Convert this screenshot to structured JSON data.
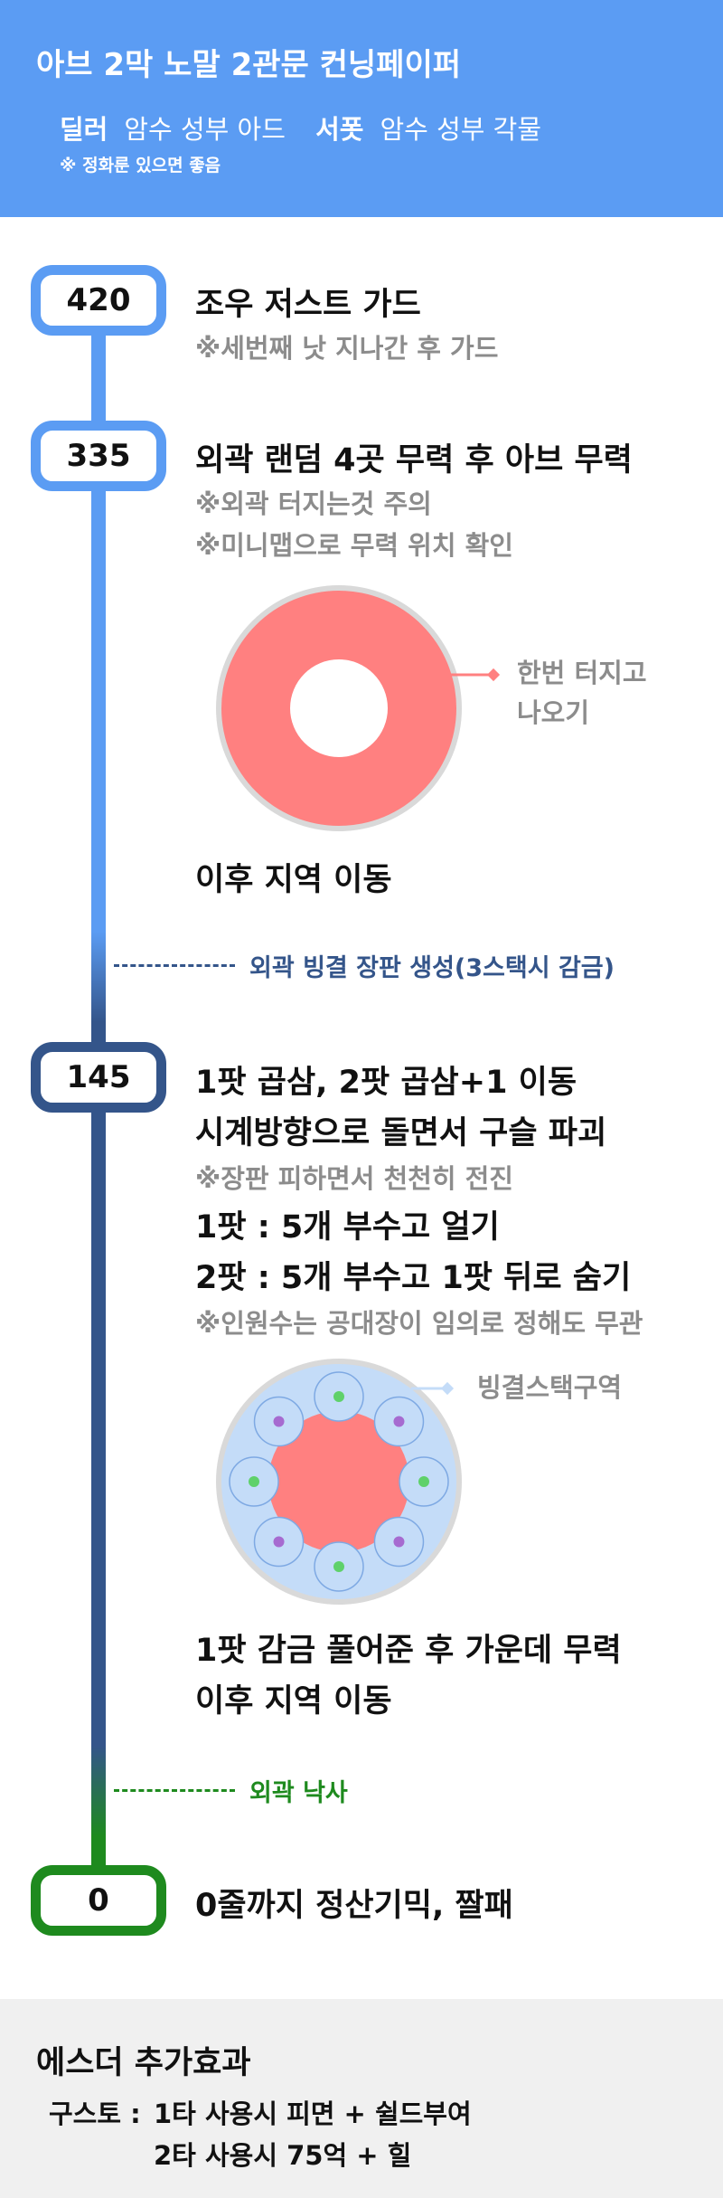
{
  "header": {
    "title": "아브 2막 노말 2관문 컨닝페이퍼",
    "roles": [
      {
        "label": "딜러",
        "value": "암수 성부 아드"
      },
      {
        "label": "서폿",
        "value": "암수 성부 각물"
      }
    ],
    "note": "※ 정화룬 있으면 좋음"
  },
  "timeline": {
    "hp420": {
      "hp": "420",
      "main": "조우 저스트 가드",
      "notes": [
        "※세번째 낫 지나간 후 가드"
      ]
    },
    "hp335": {
      "hp": "335",
      "main": "외곽 랜덤 4곳 무력 후 아브 무력",
      "notes": [
        "※외곽 터지는것 주의",
        "※미니맵으로 무력 위치 확인"
      ],
      "callout": [
        "한번 터지고",
        "나오기"
      ],
      "after": "이후 지역 이동"
    },
    "phase1": "외곽 빙결 장판 생성(3스택시 감금)",
    "hp145": {
      "hp": "145",
      "lines": [
        {
          "text": "1팟 곱삼, 2팟 곱삼+1 이동",
          "kind": "main"
        },
        {
          "text": "시계방향으로 돌면서 구슬 파괴",
          "kind": "main"
        },
        {
          "text": "※장판 피하면서 천천히 전진",
          "kind": "note"
        },
        {
          "text": "1팟 : 5개 부수고 얼기",
          "kind": "main"
        },
        {
          "text": "2팟 : 5개 부수고 1팟 뒤로 숨기",
          "kind": "main"
        },
        {
          "text": "※인원수는 공대장이 임의로 정해도 무관",
          "kind": "note"
        }
      ],
      "callout": "빙결스택구역",
      "after": [
        "1팟 감금 풀어준 후 가운데 무력",
        "이후 지역 이동"
      ]
    },
    "phase2": "외곽 낙사",
    "hp0": {
      "hp": "0",
      "main": "0줄까지 정산기믹, 짤패"
    }
  },
  "footer": {
    "title": "에스더 추가효과",
    "label": "구스토 :",
    "line1": "1타 사용시 피면 + 쉴드부여",
    "line2": "2타 사용시 75억 + 힐"
  },
  "colors": {
    "header_bg": "#5b9cf3",
    "phase_blue": "#5b9cf3",
    "phase_navy": "#34558a",
    "phase_green": "#1e8a1e",
    "danger_zone": "#ff8080",
    "ice_zone": "#c4dcf8",
    "note_text": "#8c8c8c",
    "footer_bg": "#f0f0f0"
  }
}
